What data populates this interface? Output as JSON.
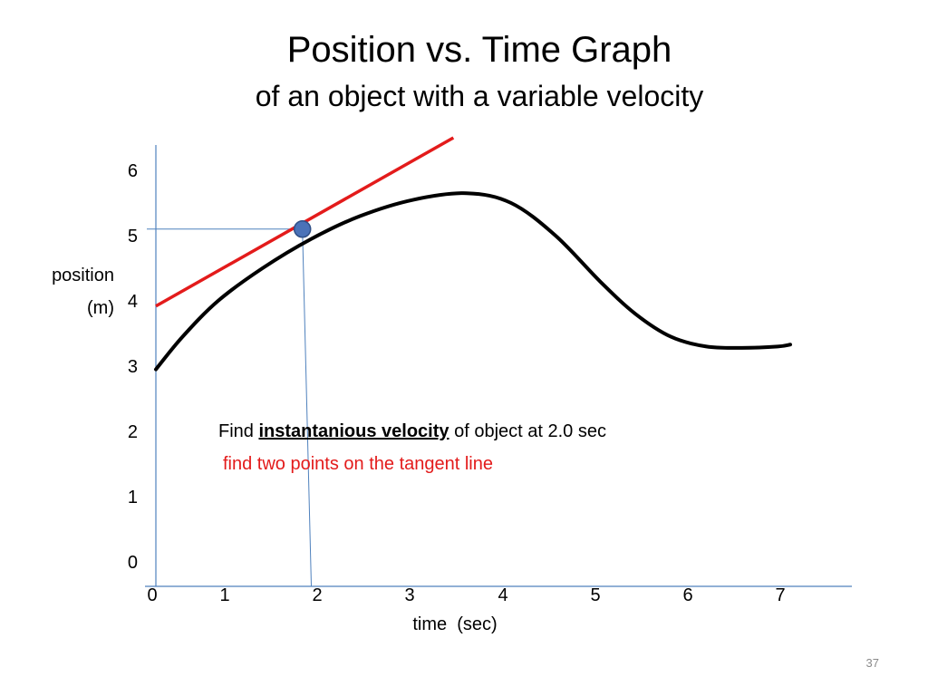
{
  "slide": {
    "title": "Position vs. Time Graph",
    "subtitle": "of an object with a variable velocity",
    "page_number": "37"
  },
  "annotation": {
    "find_prefix": "Find ",
    "find_emphasis": "instantanious velocity",
    "find_suffix": " of object at 2.0 sec",
    "hint": "find two points on the tangent line",
    "hint_color": "#e31b1b"
  },
  "chart_data": {
    "type": "line",
    "title": "",
    "xlabel": "time  (sec)",
    "ylabel": [
      "position",
      "(m)"
    ],
    "xlim": [
      0,
      7.5
    ],
    "ylim": [
      0,
      6.3
    ],
    "x_ticks": [
      "0",
      "1",
      "2",
      "3",
      "4",
      "5",
      "6",
      "7"
    ],
    "y_ticks": [
      "0",
      "1",
      "2",
      "3",
      "4",
      "5",
      "6"
    ],
    "grid": false,
    "series": [
      {
        "color": "#000000",
        "x": [
          0.0,
          0.3,
          0.7,
          1.2,
          1.75,
          2.3,
          2.9,
          3.5,
          4.0,
          4.5,
          5.0,
          5.4,
          5.8,
          6.2,
          6.6,
          7.0,
          7.0
        ],
        "y": [
          2.95,
          3.45,
          4.0,
          4.5,
          4.95,
          5.3,
          5.55,
          5.65,
          5.5,
          5.0,
          4.3,
          3.8,
          3.45,
          3.3,
          3.28,
          3.3,
          3.33
        ]
      }
    ],
    "tangent_line": {
      "color": "#e31b1b",
      "x": [
        0.0,
        3.35
      ],
      "y": [
        3.92,
        6.5
      ]
    },
    "highlight_point": {
      "x": 1.65,
      "y": 5.1,
      "color": "#4a72b8"
    },
    "guide_lines": {
      "color": "#4f81bd",
      "point_x": 1.65,
      "point_y": 5.1,
      "axis_x": 1.75
    }
  }
}
